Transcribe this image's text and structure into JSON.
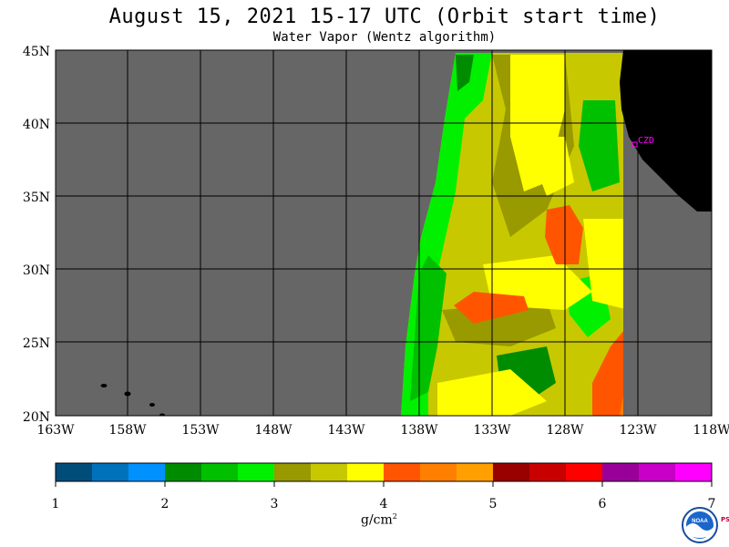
{
  "header": {
    "title": "August 15, 2021  15-17 UTC  (Orbit start time)",
    "subtitle": "Water Vapor (Wentz algorithm)"
  },
  "map": {
    "lat_labels": [
      "45N",
      "40N",
      "35N",
      "30N",
      "25N",
      "20N"
    ],
    "lon_labels": [
      "163W",
      "158W",
      "153W",
      "148W",
      "143W",
      "138W",
      "133W",
      "128W",
      "123W",
      "118W"
    ],
    "station_label": "CZD",
    "colors": {
      "no_data": "#666666",
      "land": "#000000",
      "grid": "#000000",
      "station": "#ff00ff"
    }
  },
  "colorbar": {
    "labels": [
      "1",
      "2",
      "3",
      "4",
      "5",
      "6",
      "7"
    ],
    "colors": [
      "#004d7a",
      "#0072bc",
      "#0091ff",
      "#008c00",
      "#00c000",
      "#00f000",
      "#999900",
      "#c8c800",
      "#ffff00",
      "#ff5500",
      "#ff7f00",
      "#ffa000",
      "#990000",
      "#c80000",
      "#ff0000",
      "#990099",
      "#c800c8",
      "#ff00ff"
    ],
    "units_main": "g/cm",
    "units_exp": "2"
  },
  "footer": {
    "logo_text": "NOAA",
    "psl_text": "PSL"
  }
}
